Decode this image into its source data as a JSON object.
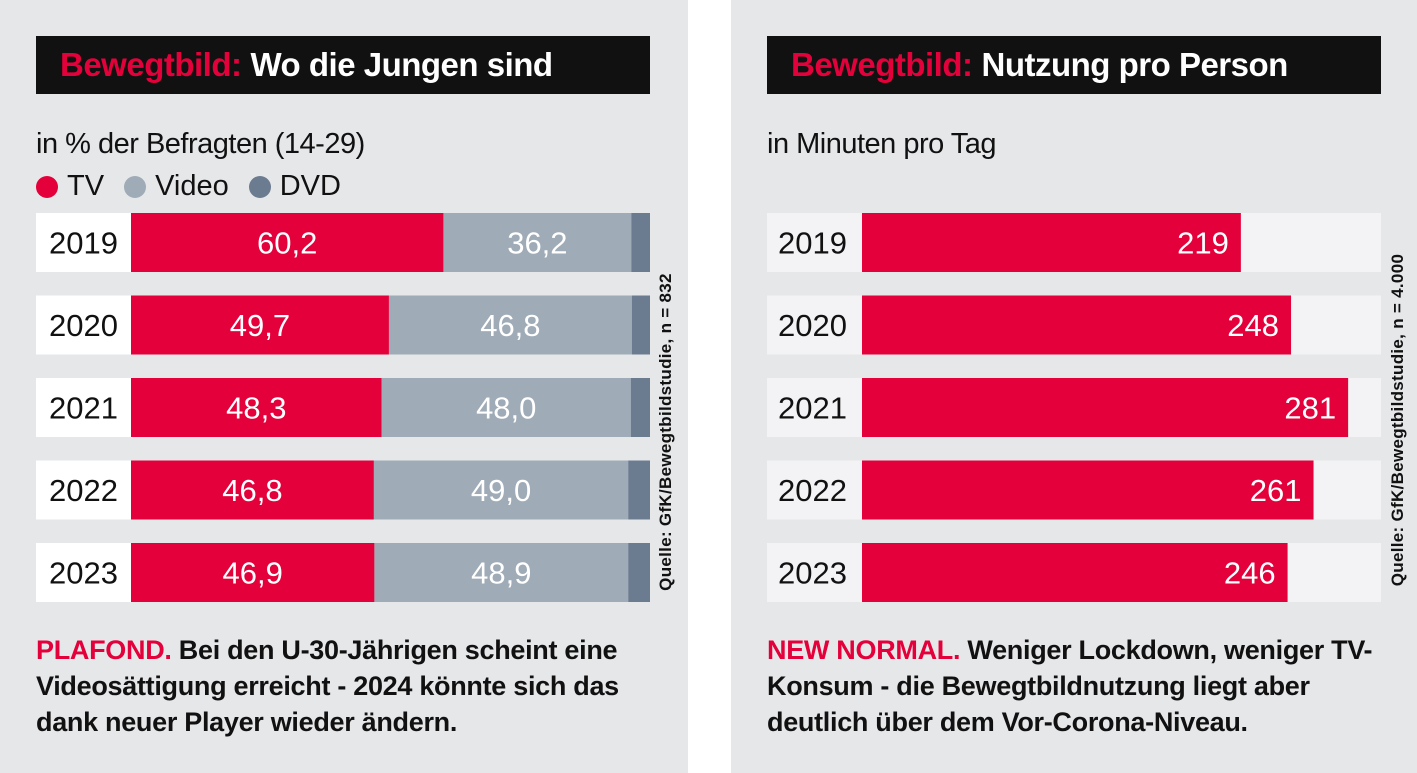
{
  "colors": {
    "tv": "#e4003a",
    "video": "#9fabb7",
    "dvd": "#6b7b90",
    "track": "#f3f3f5",
    "title_bg": "#111111",
    "panel_bg": "#e6e7e9"
  },
  "left": {
    "title_accent": "Bewegtbild:",
    "title_main": "Wo die Jungen sind",
    "subtitle": "in % der Befragten (14-29)",
    "legend": [
      "TV",
      "Video",
      "DVD"
    ],
    "source": "Quelle: GfK/Bewegtbildstudie, n = 832",
    "footer_lead": "PLAFOND.",
    "footer_text": "Bei den U-30-Jährigen scheint eine Videosättigung erreicht - 2024 könnte sich das dank neuer Player wieder ändern."
  },
  "right": {
    "title_accent": "Bewegtbild:",
    "title_main": "Nutzung pro Person",
    "subtitle": "in Minuten pro Tag",
    "source": "Quelle: GfK/Bewegtbildstudie, n = 4.000",
    "footer_lead": "NEW NORMAL.",
    "footer_text": "Weniger Lockdown, weniger TV-Konsum - die Bewegtbildnutzung liegt aber deutlich über dem Vor-Corona-Niveau."
  },
  "chart_data": [
    {
      "type": "bar",
      "orientation": "horizontal",
      "stacked": true,
      "categories": [
        "2019",
        "2020",
        "2021",
        "2022",
        "2023"
      ],
      "series": [
        {
          "name": "TV",
          "values": [
            60.2,
            49.7,
            48.3,
            46.8,
            46.9
          ],
          "labels": [
            "60,2",
            "49,7",
            "48,3",
            "46,8",
            "46,9"
          ]
        },
        {
          "name": "Video",
          "values": [
            36.2,
            46.8,
            48.0,
            49.0,
            48.9
          ],
          "labels": [
            "36,2",
            "46,8",
            "48,0",
            "49,0",
            "48,9"
          ]
        },
        {
          "name": "DVD",
          "values": [
            3.6,
            3.5,
            3.7,
            4.2,
            4.2
          ]
        }
      ],
      "xlim": [
        0,
        100
      ],
      "legend": "top-left"
    },
    {
      "type": "bar",
      "orientation": "horizontal",
      "categories": [
        "2019",
        "2020",
        "2021",
        "2022",
        "2023"
      ],
      "series": [
        {
          "values": [
            219,
            248,
            281,
            261,
            246
          ],
          "labels": [
            "219",
            "248",
            "281",
            "261",
            "246"
          ]
        }
      ],
      "xlim": [
        0,
        300
      ]
    }
  ]
}
